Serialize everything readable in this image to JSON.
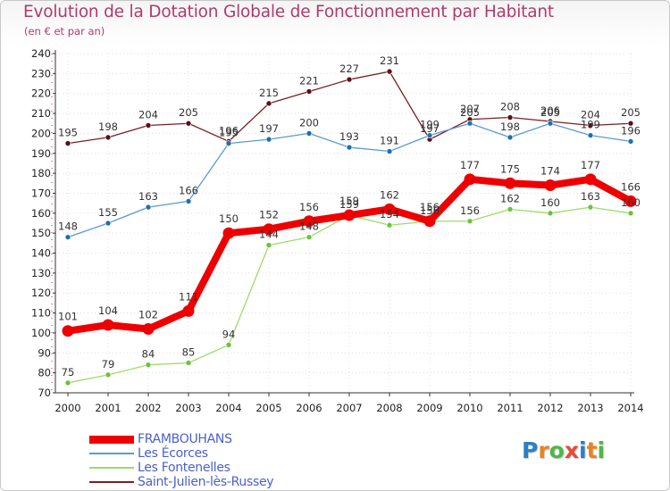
{
  "title": "Evolution de la Dotation Globale de Fonctionnement par Habitant",
  "subtitle": "(en € et par an)",
  "logo": {
    "text": "Proxiti",
    "letters": [
      {
        "ch": "P",
        "color": "#2a7fc8"
      },
      {
        "ch": "r",
        "color": "#e88420"
      },
      {
        "ch": "o",
        "color": "#4db848"
      },
      {
        "ch": "x",
        "color": "#e54b35"
      },
      {
        "ch": "i",
        "color": "#2a7fc8"
      },
      {
        "ch": "t",
        "color": "#e88420"
      },
      {
        "ch": "i",
        "color": "#4db848"
      }
    ]
  },
  "chart_data": {
    "type": "line",
    "title": "Evolution de la Dotation Globale de Fonctionnement par Habitant",
    "ylabel": "(en € et par an)",
    "xlabel": "",
    "x": [
      "2000",
      "2001",
      "2002",
      "2003",
      "2004",
      "2005",
      "2006",
      "2007",
      "2008",
      "2009",
      "2010",
      "2011",
      "2012",
      "2013",
      "2014"
    ],
    "ylim": [
      70,
      240
    ],
    "yticks": [
      "70",
      "80",
      "90",
      "100",
      "110",
      "120",
      "130",
      "140",
      "150",
      "160",
      "170",
      "180",
      "190",
      "200",
      "210",
      "220",
      "230",
      "240"
    ],
    "grid": true,
    "legend_position": "bottom-left",
    "series": [
      {
        "name": "Saint-Julien-lès-Russey",
        "color": "#7b1f24",
        "marker_color": "#5a1016",
        "width": "thin",
        "values": [
          195,
          198,
          204,
          205,
          196,
          215,
          221,
          227,
          231,
          197,
          207,
          208,
          206,
          204,
          205
        ],
        "labels": [
          "195",
          "198",
          "204",
          "205",
          "196",
          "215",
          "221",
          "227",
          "231",
          "197",
          "207",
          "208",
          "206",
          "204",
          "205"
        ]
      },
      {
        "name": "Les Écorces",
        "color": "#5b9bd0",
        "marker_color": "#1f6fb0",
        "width": "thin",
        "values": [
          148,
          155,
          163,
          166,
          195,
          197,
          200,
          193,
          191,
          199,
          205,
          198,
          205,
          199,
          196
        ],
        "labels": [
          "148",
          "155",
          "163",
          "166",
          "195",
          "197",
          "200",
          "193",
          "191",
          "199",
          "205",
          "198",
          "205",
          "199",
          "196"
        ]
      },
      {
        "name": "Les Fontenelles",
        "color": "#9ddc6a",
        "marker_color": "#6cc23a",
        "width": "thin",
        "values": [
          75,
          79,
          84,
          85,
          94,
          144,
          148,
          159,
          154,
          156,
          156,
          162,
          160,
          163,
          160
        ],
        "labels": [
          "75",
          "79",
          "84",
          "85",
          "94",
          "144",
          "148",
          "159",
          "154",
          "156",
          "156",
          "162",
          "160",
          "163",
          "160"
        ]
      },
      {
        "name": "FRAMBOUHANS",
        "color": "#ee0000",
        "marker_color": "#ee0000",
        "width": "thick",
        "values": [
          101,
          104,
          102,
          111,
          150,
          152,
          156,
          159,
          162,
          156,
          177,
          175,
          174,
          177,
          166
        ],
        "labels": [
          "101",
          "104",
          "102",
          "111",
          "150",
          "152",
          "156",
          "159",
          "162",
          "156",
          "177",
          "175",
          "174",
          "177",
          "166"
        ]
      }
    ]
  },
  "legend": [
    {
      "name": "FRAMBOUHANS",
      "color": "#ee0000",
      "thick": true
    },
    {
      "name": "Les Écorces",
      "color": "#5b9bd0",
      "thick": false
    },
    {
      "name": "Les Fontenelles",
      "color": "#9ddc6a",
      "thick": false
    },
    {
      "name": "Saint-Julien-lès-Russey",
      "color": "#7b1f24",
      "thick": false
    }
  ]
}
